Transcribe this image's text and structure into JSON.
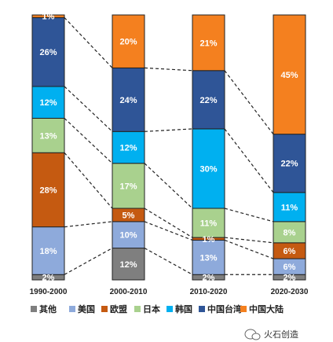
{
  "chart_data": {
    "type": "bar",
    "stacked": true,
    "percent": true,
    "categories": [
      "1990-2000",
      "2000-2010",
      "2010-2020",
      "2020-2030"
    ],
    "series": [
      {
        "name": "其他",
        "color": "#7f7f7f",
        "values": [
          2,
          12,
          2,
          2
        ],
        "labels": [
          "2%",
          "12%",
          "2%",
          "2%"
        ]
      },
      {
        "name": "美国",
        "color": "#8eaadb",
        "values": [
          18,
          10,
          13,
          6
        ],
        "labels": [
          "18%",
          "10%",
          "13%",
          "6%"
        ]
      },
      {
        "name": "欧盟",
        "color": "#c55a11",
        "values": [
          28,
          5,
          1,
          6
        ],
        "labels": [
          "28%",
          "5%",
          "1%",
          "6%"
        ]
      },
      {
        "name": "日本",
        "color": "#a9d18e",
        "values": [
          13,
          17,
          11,
          8
        ],
        "labels": [
          "13%",
          "17%",
          "11%",
          "8%"
        ]
      },
      {
        "name": "韩国",
        "color": "#00b0f0",
        "values": [
          12,
          12,
          30,
          11
        ],
        "labels": [
          "12%",
          "12%",
          "30%",
          "11%"
        ]
      },
      {
        "name": "中国台湾",
        "color": "#2f5597",
        "values": [
          26,
          24,
          22,
          22
        ],
        "labels": [
          "26%",
          "24%",
          "22%",
          "22%"
        ]
      },
      {
        "name": "中国大陆",
        "color": "#f4801f",
        "values": [
          1,
          20,
          21,
          45
        ],
        "labels": [
          "1%",
          "20%",
          "21%",
          "45%"
        ]
      }
    ],
    "connectors": "dashed",
    "legend": "bottom"
  },
  "watermark": {
    "icon": "wechat-icon",
    "text": "火石创造"
  }
}
